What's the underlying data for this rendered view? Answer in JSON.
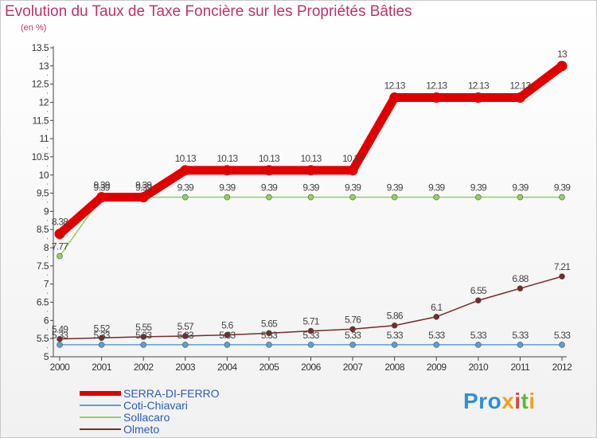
{
  "title": "Evolution du Taux de Taxe Foncière sur les Propriétés Bâties",
  "subtitle": "(en %)",
  "logo": "Proxiti",
  "chart_data": {
    "type": "line",
    "title": "Evolution du Taux de Taxe Foncière sur les Propriétés Bâties",
    "ylabel": "(en %)",
    "xlabel": "",
    "ylim": [
      5,
      13.5
    ],
    "yticks": [
      "5",
      "5.5",
      "6",
      "6.5",
      "7",
      "7.5",
      "8",
      "8.5",
      "9",
      "9.5",
      "10",
      "10.5",
      "11",
      "11.5",
      "12",
      "12.5",
      "13",
      "13.5"
    ],
    "categories": [
      "2000",
      "2001",
      "2002",
      "2003",
      "2004",
      "2005",
      "2006",
      "2007",
      "2008",
      "2009",
      "2010",
      "2011",
      "2012"
    ],
    "grid": false,
    "legend": "bottom-left",
    "series": [
      {
        "name": "SERRA-DI-FERRO",
        "color": "#e00000",
        "values": [
          8.38,
          9.39,
          9.39,
          10.13,
          10.13,
          10.13,
          10.13,
          10.13,
          12.13,
          12.13,
          12.13,
          12.13,
          13
        ],
        "labels": [
          "8.38",
          "9.39",
          "9.39",
          "10.13",
          "10.13",
          "10.13",
          "10.13",
          "10.13",
          "12.13",
          "12.13",
          "12.13",
          "12.13",
          "13"
        ]
      },
      {
        "name": "Coti-Chiavari",
        "color": "#5a9fd4",
        "values": [
          5.33,
          5.33,
          5.33,
          5.33,
          5.33,
          5.33,
          5.33,
          5.33,
          5.33,
          5.33,
          5.33,
          5.33,
          5.33
        ],
        "labels": [
          "5.33",
          "5.33",
          "5.33",
          "5.33",
          "5.33",
          "5.33",
          "5.33",
          "5.33",
          "5.33",
          "5.33",
          "5.33",
          "5.33",
          "5.33"
        ]
      },
      {
        "name": "Sollacaro",
        "color": "#8cd45a",
        "values": [
          7.77,
          9.39,
          9.39,
          9.39,
          9.39,
          9.39,
          9.39,
          9.39,
          9.39,
          9.39,
          9.39,
          9.39,
          9.39
        ],
        "labels": [
          "7.77",
          "9.39",
          "9.39",
          "9.39",
          "9.39",
          "9.39",
          "9.39",
          "9.39",
          "9.39",
          "9.39",
          "9.39",
          "9.39",
          "9.39"
        ]
      },
      {
        "name": "Olmeto",
        "color": "#7a2a2a",
        "values": [
          5.49,
          5.52,
          5.55,
          5.57,
          5.6,
          5.65,
          5.71,
          5.76,
          5.86,
          6.1,
          6.55,
          6.88,
          7.21
        ],
        "labels": [
          "5.49",
          "5.52",
          "5.55",
          "5.57",
          "5.6",
          "5.65",
          "5.71",
          "5.76",
          "5.86",
          "6.1",
          "6.55",
          "6.88",
          "7.21"
        ]
      }
    ]
  }
}
